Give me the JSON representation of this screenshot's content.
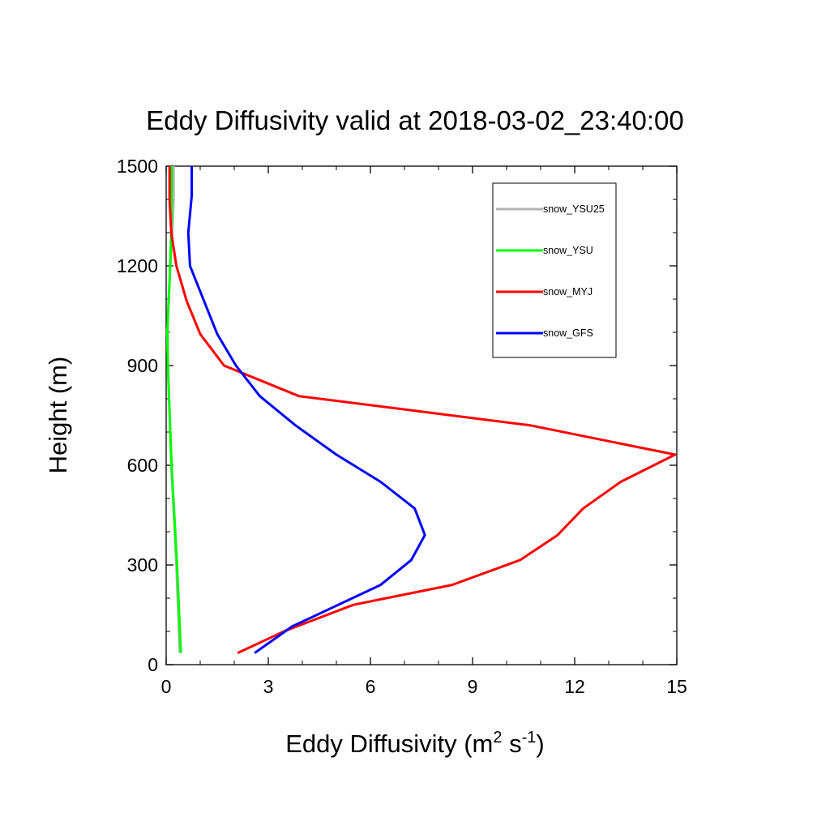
{
  "chart_data": {
    "type": "line",
    "title": "Eddy Diffusivity valid at 2018-03-02_23:40:00",
    "xlabel": {
      "main": "Eddy Diffusivity (m",
      "sup1": "2",
      "mid": " s",
      "sup2": "-1",
      "end": ")"
    },
    "ylabel": "Height (m)",
    "xlim": [
      0,
      15
    ],
    "ylim": [
      0,
      1500
    ],
    "xticks": [
      0,
      3,
      6,
      9,
      12,
      15
    ],
    "xtick_labels": [
      "0",
      "3",
      "6",
      "9",
      "12",
      "15"
    ],
    "yticks": [
      0,
      300,
      600,
      900,
      1200,
      1500
    ],
    "ytick_labels": [
      "0",
      "300",
      "600",
      "900",
      "1200",
      "1500"
    ],
    "grid": false,
    "legend_position": "top-right",
    "series": [
      {
        "name": "snow_YSU25",
        "color": "#b4b4b4",
        "points": [
          [
            0.4,
            35
          ],
          [
            0.3,
            300
          ],
          [
            0.15,
            600
          ],
          [
            0.05,
            900
          ],
          [
            0.05,
            1050
          ],
          [
            0.12,
            1200
          ],
          [
            0.18,
            1300
          ],
          [
            0.22,
            1400
          ],
          [
            0.22,
            1500
          ]
        ]
      },
      {
        "name": "snow_YSU",
        "color": "#00ff00",
        "points": [
          [
            0.43,
            35
          ],
          [
            0.32,
            300
          ],
          [
            0.16,
            600
          ],
          [
            0.05,
            900
          ],
          [
            0.03,
            1000
          ],
          [
            0.1,
            1150
          ],
          [
            0.15,
            1300
          ],
          [
            0.16,
            1400
          ],
          [
            0.16,
            1500
          ]
        ]
      },
      {
        "name": "snow_MYJ",
        "color": "#ff0000",
        "points": [
          [
            2.1,
            35
          ],
          [
            3.5,
            102
          ],
          [
            5.5,
            180
          ],
          [
            8.4,
            240
          ],
          [
            10.4,
            315
          ],
          [
            11.5,
            390
          ],
          [
            12.25,
            470
          ],
          [
            13.35,
            550
          ],
          [
            14.95,
            632
          ],
          [
            10.7,
            720
          ],
          [
            3.9,
            808
          ],
          [
            1.7,
            900
          ],
          [
            1.0,
            995
          ],
          [
            0.6,
            1095
          ],
          [
            0.3,
            1200
          ],
          [
            0.15,
            1300
          ],
          [
            0.1,
            1400
          ],
          [
            0.1,
            1500
          ]
        ]
      },
      {
        "name": "snow_GFS",
        "color": "#0000ff",
        "points": [
          [
            2.6,
            35
          ],
          [
            3.7,
            115
          ],
          [
            6.3,
            240
          ],
          [
            7.2,
            315
          ],
          [
            7.6,
            390
          ],
          [
            7.3,
            470
          ],
          [
            6.3,
            550
          ],
          [
            5.0,
            632
          ],
          [
            3.8,
            720
          ],
          [
            2.75,
            808
          ],
          [
            2.05,
            900
          ],
          [
            1.5,
            995
          ],
          [
            0.7,
            1200
          ],
          [
            0.65,
            1300
          ],
          [
            0.75,
            1410
          ],
          [
            0.75,
            1500
          ]
        ]
      }
    ]
  }
}
